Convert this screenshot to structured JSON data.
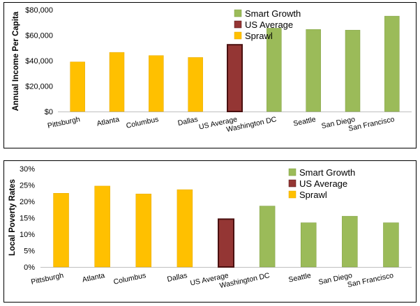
{
  "colors": {
    "sprawl": "#FFC000",
    "sprawl_stroke": "#E6A800",
    "us_average": "#943634",
    "us_average_stroke": "#4a1010",
    "smart_growth": "#9BBB59",
    "smart_growth_stroke": "#7f9e40"
  },
  "chart_data": [
    {
      "type": "bar",
      "title": "",
      "xlabel": "",
      "ylabel": "Annual Income Per Capita",
      "ylim": [
        0,
        80000
      ],
      "yticks": [
        0,
        20000,
        40000,
        60000,
        80000
      ],
      "ytick_labels": [
        "$0",
        "$20,000",
        "$40,000",
        "$60,000",
        "$80,000"
      ],
      "categories": [
        "Pittsburgh",
        "Atlanta",
        "Columbus",
        "Dallas",
        "US Average",
        "Washington DC",
        "Seattle",
        "San Diego",
        "San Francisco"
      ],
      "groups": [
        "Sprawl",
        "Sprawl",
        "Sprawl",
        "Sprawl",
        "US Average",
        "Smart Growth",
        "Smart Growth",
        "Smart Growth",
        "Smart Growth"
      ],
      "values": [
        39000,
        46500,
        44000,
        42500,
        52500,
        65500,
        64500,
        64000,
        75000
      ],
      "legend": [
        "Smart Growth",
        "US Average",
        "Sprawl"
      ],
      "legend_position": "top-right"
    },
    {
      "type": "bar",
      "title": "",
      "xlabel": "",
      "ylabel": "Local Poverty Rates",
      "ylim": [
        0,
        30
      ],
      "yticks": [
        0,
        5,
        10,
        15,
        20,
        25,
        30
      ],
      "ytick_labels": [
        "0%",
        "5%",
        "10%",
        "15%",
        "20%",
        "25%",
        "30%"
      ],
      "categories": [
        "Pittsburgh",
        "Atlanta",
        "Columbus",
        "Dallas",
        "US Average",
        "Washington DC",
        "Seattle",
        "San Diego",
        "San Francisco"
      ],
      "groups": [
        "Sprawl",
        "Sprawl",
        "Sprawl",
        "Sprawl",
        "US Average",
        "Smart Growth",
        "Smart Growth",
        "Smart Growth",
        "Smart Growth"
      ],
      "values": [
        22.5,
        24.7,
        22.3,
        23.6,
        14.6,
        18.6,
        13.5,
        15.5,
        13.5
      ],
      "legend": [
        "Smart Growth",
        "US Average",
        "Sprawl"
      ],
      "legend_position": "top-right"
    }
  ]
}
